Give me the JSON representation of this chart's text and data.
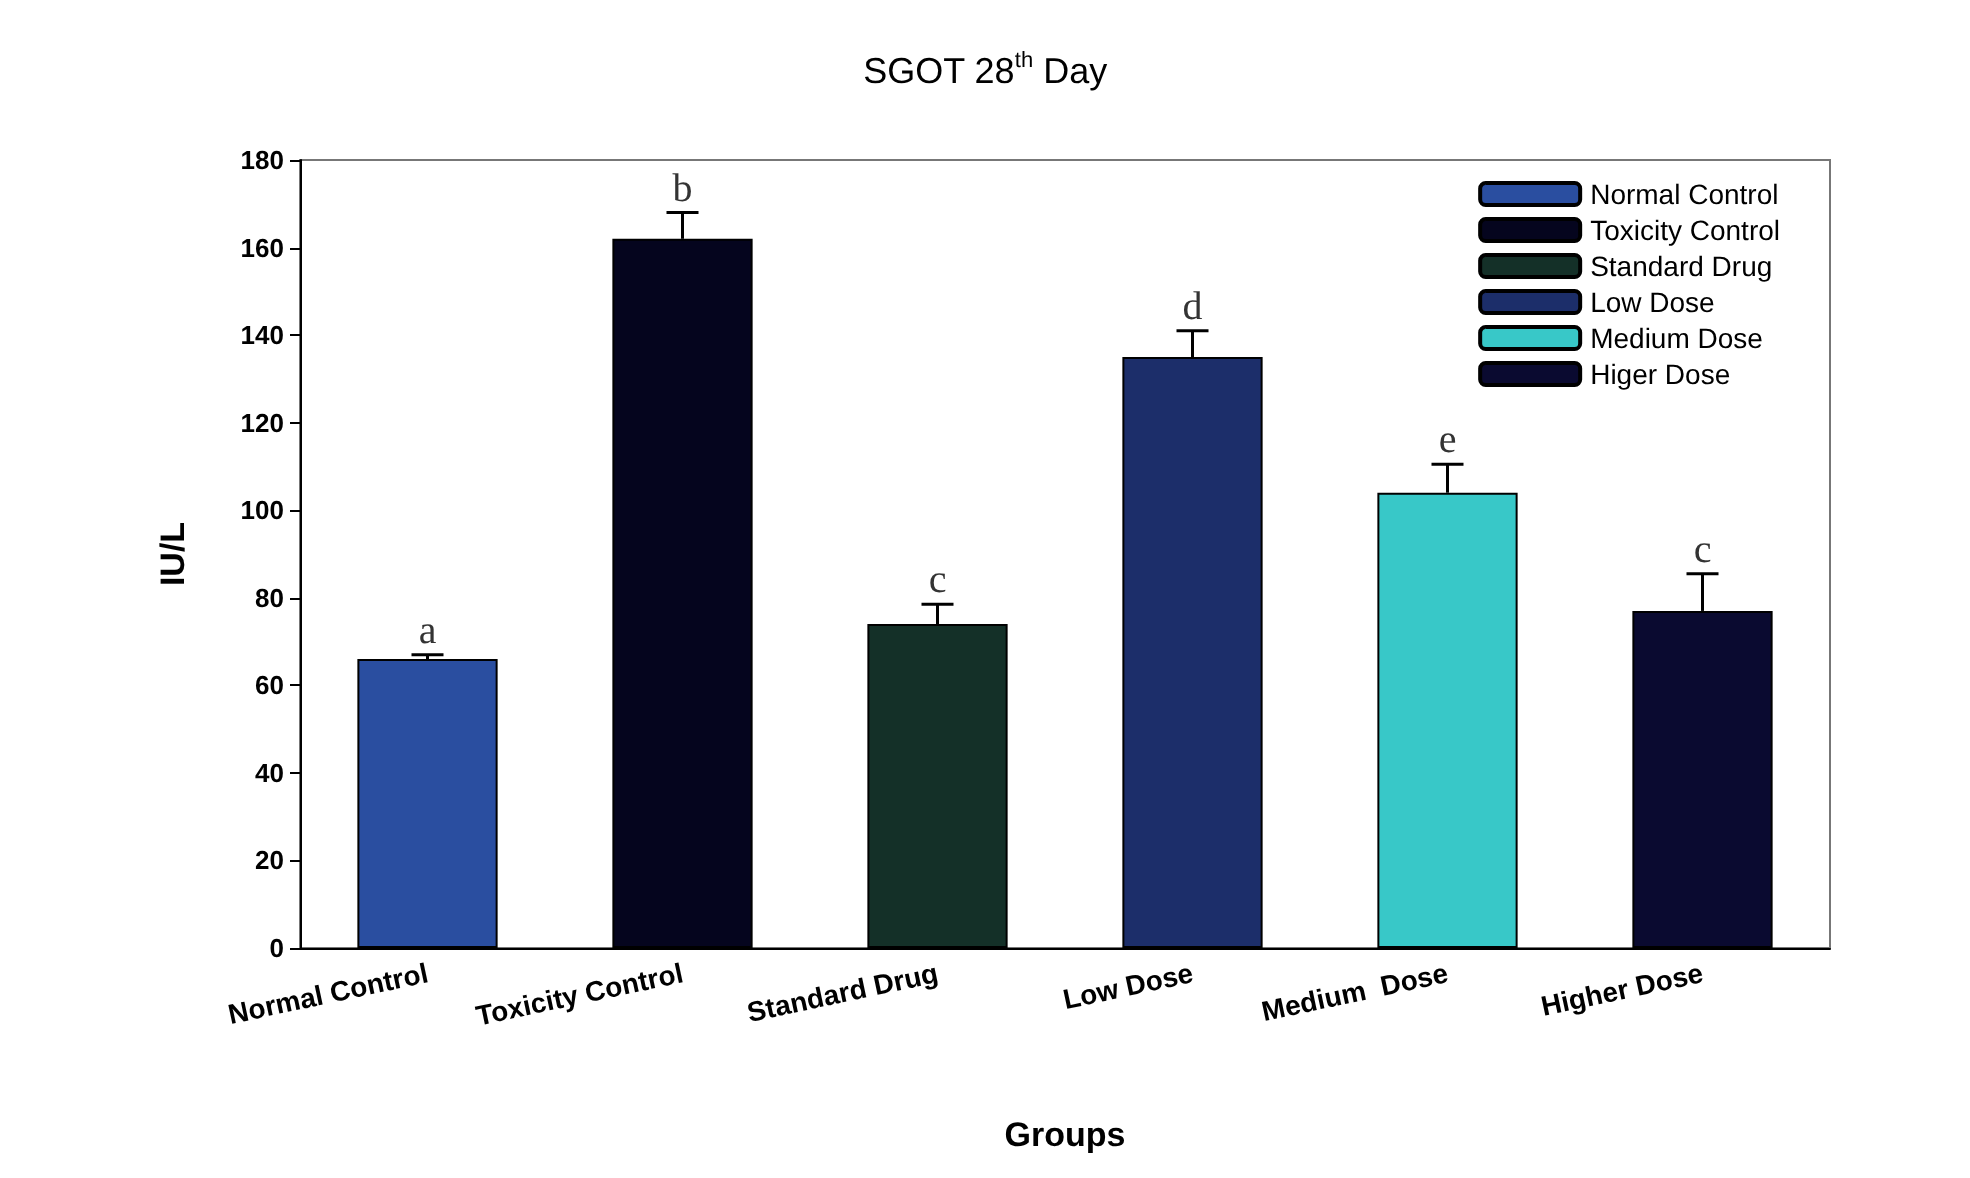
{
  "chart_data": {
    "type": "bar",
    "title": "SGOT 28$^{th}$ Day",
    "xlabel": "Groups",
    "ylabel": "IU/L",
    "categories": [
      "Normal Control",
      "Toxicity Control",
      "Standard Drug",
      "Low Dose",
      "Medium  Dose",
      "Higher Dose"
    ],
    "series": [
      {
        "name": "Normal Control",
        "color": "#2a4ea0",
        "values": [
          66,
          null,
          null,
          null,
          null,
          null
        ],
        "errors": [
          1,
          null,
          null,
          null,
          null,
          null
        ]
      },
      {
        "name": "Toxicity Control",
        "color": "#05051e",
        "values": [
          null,
          162,
          null,
          null,
          null,
          null
        ],
        "errors": [
          null,
          6,
          null,
          null,
          null,
          null
        ]
      },
      {
        "name": "Standard Drug",
        "color": "#143028",
        "values": [
          null,
          null,
          74,
          null,
          null,
          null
        ],
        "errors": [
          null,
          null,
          4.5,
          null,
          null,
          null
        ]
      },
      {
        "name": "Low Dose",
        "color": "#1c2e6a",
        "values": [
          null,
          null,
          null,
          135,
          null,
          null
        ],
        "errors": [
          null,
          null,
          null,
          6,
          null,
          null
        ]
      },
      {
        "name": "Medium Dose",
        "color": "#38c8c8",
        "values": [
          null,
          null,
          null,
          null,
          104,
          null
        ],
        "errors": [
          null,
          null,
          null,
          null,
          6.5,
          null
        ]
      },
      {
        "name": "Higer Dose",
        "color": "#0a0a30",
        "values": [
          null,
          null,
          null,
          null,
          null,
          77
        ],
        "errors": [
          null,
          null,
          null,
          null,
          null,
          8.5
        ]
      }
    ],
    "annotations": [
      {
        "text": "a",
        "x": "Normal Control",
        "y": 67
      },
      {
        "text": "b",
        "x": "Toxicity Control",
        "y": 168
      },
      {
        "text": "c",
        "x": "Standard Drug",
        "y": 78.5
      },
      {
        "text": "d",
        "x": "Low Dose",
        "y": 141
      },
      {
        "text": "e",
        "x": "Medium  Dose",
        "y": 110.5
      },
      {
        "text": "c",
        "x": "Higher Dose",
        "y": 85.5
      }
    ],
    "ylim": [
      0,
      180
    ],
    "yticks": [
      0,
      20,
      40,
      60,
      80,
      100,
      120,
      140,
      160,
      180
    ],
    "grid": false,
    "legend": "top right"
  }
}
